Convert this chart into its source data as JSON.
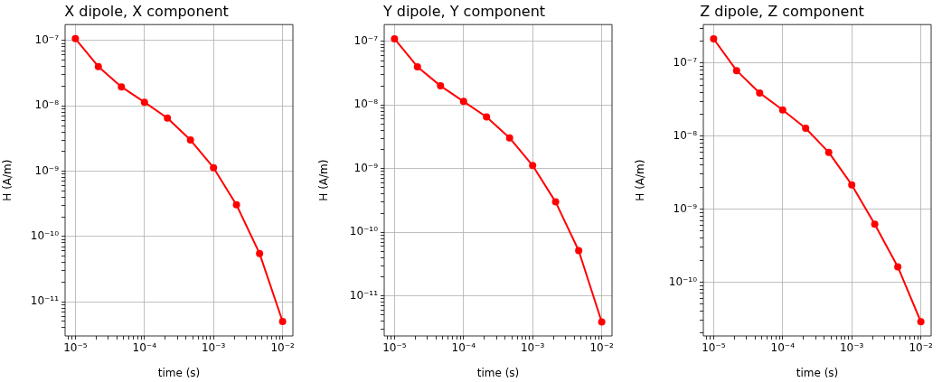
{
  "chart_data": [
    {
      "type": "line",
      "title": "X dipole, X component",
      "xlabel": "time (s)",
      "ylabel": "H (A/m)",
      "log": "xy",
      "grid": true,
      "marker": "circle",
      "x": [
        1e-05,
        2.15e-05,
        4.64e-05,
        0.0001,
        0.000215,
        0.000464,
        0.001,
        0.00215,
        0.00464,
        0.01
      ],
      "series": [
        {
          "color": "#ff0000",
          "values": [
            1.07e-07,
            4e-08,
            1.96e-08,
            1.14e-08,
            6.5e-09,
            3e-09,
            1.13e-09,
            3.05e-10,
            5.5e-11,
            5e-12
          ]
        }
      ],
      "xlim": [
        7.1e-06,
        0.0141
      ],
      "xticks": [
        {
          "value": 8e-06,
          "label": null
        },
        {
          "value": 9e-06,
          "label": null
        },
        {
          "value": 1e-05,
          "label": "10⁻⁵"
        },
        {
          "value": 2e-05,
          "label": null
        },
        {
          "value": 3e-05,
          "label": null
        },
        {
          "value": 4e-05,
          "label": null
        },
        {
          "value": 5e-05,
          "label": null
        },
        {
          "value": 6e-05,
          "label": null
        },
        {
          "value": 7e-05,
          "label": null
        },
        {
          "value": 8e-05,
          "label": null
        },
        {
          "value": 9e-05,
          "label": null
        },
        {
          "value": 0.0001,
          "label": "10⁻⁴"
        },
        {
          "value": 0.0002,
          "label": null
        },
        {
          "value": 0.0003,
          "label": null
        },
        {
          "value": 0.0004,
          "label": null
        },
        {
          "value": 0.0005,
          "label": null
        },
        {
          "value": 0.0006,
          "label": null
        },
        {
          "value": 0.0007,
          "label": null
        },
        {
          "value": 0.0008,
          "label": null
        },
        {
          "value": 0.0009,
          "label": null
        },
        {
          "value": 0.001,
          "label": "10⁻³"
        },
        {
          "value": 0.002,
          "label": null
        },
        {
          "value": 0.003,
          "label": null
        },
        {
          "value": 0.004,
          "label": null
        },
        {
          "value": 0.005,
          "label": null
        },
        {
          "value": 0.006,
          "label": null
        },
        {
          "value": 0.007,
          "label": null
        },
        {
          "value": 0.008,
          "label": null
        },
        {
          "value": 0.009,
          "label": null
        },
        {
          "value": 0.01,
          "label": "10⁻²"
        }
      ],
      "ylim": [
        3e-12,
        1.76e-07
      ],
      "yticks": [
        {
          "value": 4e-12,
          "label": null
        },
        {
          "value": 5e-12,
          "label": null
        },
        {
          "value": 6e-12,
          "label": null
        },
        {
          "value": 7e-12,
          "label": null
        },
        {
          "value": 8e-12,
          "label": null
        },
        {
          "value": 9e-12,
          "label": null
        },
        {
          "value": 1e-11,
          "label": "10⁻¹¹"
        },
        {
          "value": 2e-11,
          "label": null
        },
        {
          "value": 3e-11,
          "label": null
        },
        {
          "value": 4e-11,
          "label": null
        },
        {
          "value": 5e-11,
          "label": null
        },
        {
          "value": 6e-11,
          "label": null
        },
        {
          "value": 7e-11,
          "label": null
        },
        {
          "value": 8e-11,
          "label": null
        },
        {
          "value": 9e-11,
          "label": null
        },
        {
          "value": 1e-10,
          "label": "10⁻¹⁰"
        },
        {
          "value": 2e-10,
          "label": null
        },
        {
          "value": 3e-10,
          "label": null
        },
        {
          "value": 4e-10,
          "label": null
        },
        {
          "value": 5e-10,
          "label": null
        },
        {
          "value": 6e-10,
          "label": null
        },
        {
          "value": 7e-10,
          "label": null
        },
        {
          "value": 8e-10,
          "label": null
        },
        {
          "value": 9e-10,
          "label": null
        },
        {
          "value": 1e-09,
          "label": "10⁻⁹"
        },
        {
          "value": 2e-09,
          "label": null
        },
        {
          "value": 3e-09,
          "label": null
        },
        {
          "value": 4e-09,
          "label": null
        },
        {
          "value": 5e-09,
          "label": null
        },
        {
          "value": 6e-09,
          "label": null
        },
        {
          "value": 7e-09,
          "label": null
        },
        {
          "value": 8e-09,
          "label": null
        },
        {
          "value": 9e-09,
          "label": null
        },
        {
          "value": 1e-08,
          "label": "10⁻⁸"
        },
        {
          "value": 2e-08,
          "label": null
        },
        {
          "value": 3e-08,
          "label": null
        },
        {
          "value": 4e-08,
          "label": null
        },
        {
          "value": 5e-08,
          "label": null
        },
        {
          "value": 6e-08,
          "label": null
        },
        {
          "value": 7e-08,
          "label": null
        },
        {
          "value": 8e-08,
          "label": null
        },
        {
          "value": 9e-08,
          "label": null
        },
        {
          "value": 1e-07,
          "label": "10⁻⁷"
        }
      ]
    },
    {
      "type": "line",
      "title": "Y dipole, Y component",
      "xlabel": "time (s)",
      "ylabel": "H (A/m)",
      "log": "xy",
      "grid": true,
      "marker": "circle",
      "x": [
        1e-05,
        2.15e-05,
        4.64e-05,
        0.0001,
        0.000215,
        0.000464,
        0.001,
        0.00215,
        0.00464,
        0.01
      ],
      "series": [
        {
          "color": "#ff0000",
          "values": [
            1.1e-07,
            4e-08,
            2e-08,
            1.14e-08,
            6.5e-09,
            3.05e-09,
            1.12e-09,
            3e-10,
            5.15e-11,
            3.9e-12
          ]
        }
      ],
      "xlim": [
        7.1e-06,
        0.0141
      ],
      "xticks": [
        {
          "value": 8e-06,
          "label": null
        },
        {
          "value": 9e-06,
          "label": null
        },
        {
          "value": 1e-05,
          "label": "10⁻⁵"
        },
        {
          "value": 2e-05,
          "label": null
        },
        {
          "value": 3e-05,
          "label": null
        },
        {
          "value": 4e-05,
          "label": null
        },
        {
          "value": 5e-05,
          "label": null
        },
        {
          "value": 6e-05,
          "label": null
        },
        {
          "value": 7e-05,
          "label": null
        },
        {
          "value": 8e-05,
          "label": null
        },
        {
          "value": 9e-05,
          "label": null
        },
        {
          "value": 0.0001,
          "label": "10⁻⁴"
        },
        {
          "value": 0.0002,
          "label": null
        },
        {
          "value": 0.0003,
          "label": null
        },
        {
          "value": 0.0004,
          "label": null
        },
        {
          "value": 0.0005,
          "label": null
        },
        {
          "value": 0.0006,
          "label": null
        },
        {
          "value": 0.0007,
          "label": null
        },
        {
          "value": 0.0008,
          "label": null
        },
        {
          "value": 0.0009,
          "label": null
        },
        {
          "value": 0.001,
          "label": "10⁻³"
        },
        {
          "value": 0.002,
          "label": null
        },
        {
          "value": 0.003,
          "label": null
        },
        {
          "value": 0.004,
          "label": null
        },
        {
          "value": 0.005,
          "label": null
        },
        {
          "value": 0.006,
          "label": null
        },
        {
          "value": 0.007,
          "label": null
        },
        {
          "value": 0.008,
          "label": null
        },
        {
          "value": 0.009,
          "label": null
        },
        {
          "value": 0.01,
          "label": "10⁻²"
        }
      ],
      "ylim": [
        2.35e-12,
        1.84e-07
      ],
      "yticks": [
        {
          "value": 3e-12,
          "label": null
        },
        {
          "value": 4e-12,
          "label": null
        },
        {
          "value": 5e-12,
          "label": null
        },
        {
          "value": 6e-12,
          "label": null
        },
        {
          "value": 7e-12,
          "label": null
        },
        {
          "value": 8e-12,
          "label": null
        },
        {
          "value": 9e-12,
          "label": null
        },
        {
          "value": 1e-11,
          "label": "10⁻¹¹"
        },
        {
          "value": 2e-11,
          "label": null
        },
        {
          "value": 3e-11,
          "label": null
        },
        {
          "value": 4e-11,
          "label": null
        },
        {
          "value": 5e-11,
          "label": null
        },
        {
          "value": 6e-11,
          "label": null
        },
        {
          "value": 7e-11,
          "label": null
        },
        {
          "value": 8e-11,
          "label": null
        },
        {
          "value": 9e-11,
          "label": null
        },
        {
          "value": 1e-10,
          "label": "10⁻¹⁰"
        },
        {
          "value": 2e-10,
          "label": null
        },
        {
          "value": 3e-10,
          "label": null
        },
        {
          "value": 4e-10,
          "label": null
        },
        {
          "value": 5e-10,
          "label": null
        },
        {
          "value": 6e-10,
          "label": null
        },
        {
          "value": 7e-10,
          "label": null
        },
        {
          "value": 8e-10,
          "label": null
        },
        {
          "value": 9e-10,
          "label": null
        },
        {
          "value": 1e-09,
          "label": "10⁻⁹"
        },
        {
          "value": 2e-09,
          "label": null
        },
        {
          "value": 3e-09,
          "label": null
        },
        {
          "value": 4e-09,
          "label": null
        },
        {
          "value": 5e-09,
          "label": null
        },
        {
          "value": 6e-09,
          "label": null
        },
        {
          "value": 7e-09,
          "label": null
        },
        {
          "value": 8e-09,
          "label": null
        },
        {
          "value": 9e-09,
          "label": null
        },
        {
          "value": 1e-08,
          "label": "10⁻⁸"
        },
        {
          "value": 2e-08,
          "label": null
        },
        {
          "value": 3e-08,
          "label": null
        },
        {
          "value": 4e-08,
          "label": null
        },
        {
          "value": 5e-08,
          "label": null
        },
        {
          "value": 6e-08,
          "label": null
        },
        {
          "value": 7e-08,
          "label": null
        },
        {
          "value": 8e-08,
          "label": null
        },
        {
          "value": 9e-08,
          "label": null
        },
        {
          "value": 1e-07,
          "label": "10⁻⁷"
        }
      ]
    },
    {
      "type": "line",
      "title": "Z dipole, Z component",
      "xlabel": "time (s)",
      "ylabel": "H (A/m)",
      "log": "xy",
      "grid": true,
      "marker": "circle",
      "x": [
        1e-05,
        2.15e-05,
        4.64e-05,
        0.0001,
        0.000215,
        0.000464,
        0.001,
        0.00215,
        0.00464,
        0.01
      ],
      "series": [
        {
          "color": "#ff0000",
          "values": [
            2.15e-07,
            7.9e-08,
            3.9e-08,
            2.28e-08,
            1.28e-08,
            6e-09,
            2.15e-09,
            6.2e-10,
            1.62e-10,
            2.86e-11
          ]
        }
      ],
      "xlim": [
        7.1e-06,
        0.0141
      ],
      "xticks": [
        {
          "value": 8e-06,
          "label": null
        },
        {
          "value": 9e-06,
          "label": null
        },
        {
          "value": 1e-05,
          "label": "10⁻⁵"
        },
        {
          "value": 2e-05,
          "label": null
        },
        {
          "value": 3e-05,
          "label": null
        },
        {
          "value": 4e-05,
          "label": null
        },
        {
          "value": 5e-05,
          "label": null
        },
        {
          "value": 6e-05,
          "label": null
        },
        {
          "value": 7e-05,
          "label": null
        },
        {
          "value": 8e-05,
          "label": null
        },
        {
          "value": 9e-05,
          "label": null
        },
        {
          "value": 0.0001,
          "label": "10⁻⁴"
        },
        {
          "value": 0.0002,
          "label": null
        },
        {
          "value": 0.0003,
          "label": null
        },
        {
          "value": 0.0004,
          "label": null
        },
        {
          "value": 0.0005,
          "label": null
        },
        {
          "value": 0.0006,
          "label": null
        },
        {
          "value": 0.0007,
          "label": null
        },
        {
          "value": 0.0008,
          "label": null
        },
        {
          "value": 0.0009,
          "label": null
        },
        {
          "value": 0.001,
          "label": "10⁻³"
        },
        {
          "value": 0.002,
          "label": null
        },
        {
          "value": 0.003,
          "label": null
        },
        {
          "value": 0.004,
          "label": null
        },
        {
          "value": 0.005,
          "label": null
        },
        {
          "value": 0.006,
          "label": null
        },
        {
          "value": 0.007,
          "label": null
        },
        {
          "value": 0.008,
          "label": null
        },
        {
          "value": 0.009,
          "label": null
        },
        {
          "value": 0.01,
          "label": "10⁻²"
        }
      ],
      "ylim": [
        1.83e-11,
        3.37e-07
      ],
      "yticks": [
        {
          "value": 2e-11,
          "label": null
        },
        {
          "value": 3e-11,
          "label": null
        },
        {
          "value": 4e-11,
          "label": null
        },
        {
          "value": 5e-11,
          "label": null
        },
        {
          "value": 6e-11,
          "label": null
        },
        {
          "value": 7e-11,
          "label": null
        },
        {
          "value": 8e-11,
          "label": null
        },
        {
          "value": 9e-11,
          "label": null
        },
        {
          "value": 1e-10,
          "label": "10⁻¹⁰"
        },
        {
          "value": 2e-10,
          "label": null
        },
        {
          "value": 3e-10,
          "label": null
        },
        {
          "value": 4e-10,
          "label": null
        },
        {
          "value": 5e-10,
          "label": null
        },
        {
          "value": 6e-10,
          "label": null
        },
        {
          "value": 7e-10,
          "label": null
        },
        {
          "value": 8e-10,
          "label": null
        },
        {
          "value": 9e-10,
          "label": null
        },
        {
          "value": 1e-09,
          "label": "10⁻⁹"
        },
        {
          "value": 2e-09,
          "label": null
        },
        {
          "value": 3e-09,
          "label": null
        },
        {
          "value": 4e-09,
          "label": null
        },
        {
          "value": 5e-09,
          "label": null
        },
        {
          "value": 6e-09,
          "label": null
        },
        {
          "value": 7e-09,
          "label": null
        },
        {
          "value": 8e-09,
          "label": null
        },
        {
          "value": 9e-09,
          "label": null
        },
        {
          "value": 1e-08,
          "label": "10⁻⁸"
        },
        {
          "value": 2e-08,
          "label": null
        },
        {
          "value": 3e-08,
          "label": null
        },
        {
          "value": 4e-08,
          "label": null
        },
        {
          "value": 5e-08,
          "label": null
        },
        {
          "value": 6e-08,
          "label": null
        },
        {
          "value": 7e-08,
          "label": null
        },
        {
          "value": 8e-08,
          "label": null
        },
        {
          "value": 9e-08,
          "label": null
        },
        {
          "value": 1e-07,
          "label": "10⁻⁷"
        },
        {
          "value": 2e-07,
          "label": null
        },
        {
          "value": 3e-07,
          "label": null
        }
      ]
    }
  ]
}
